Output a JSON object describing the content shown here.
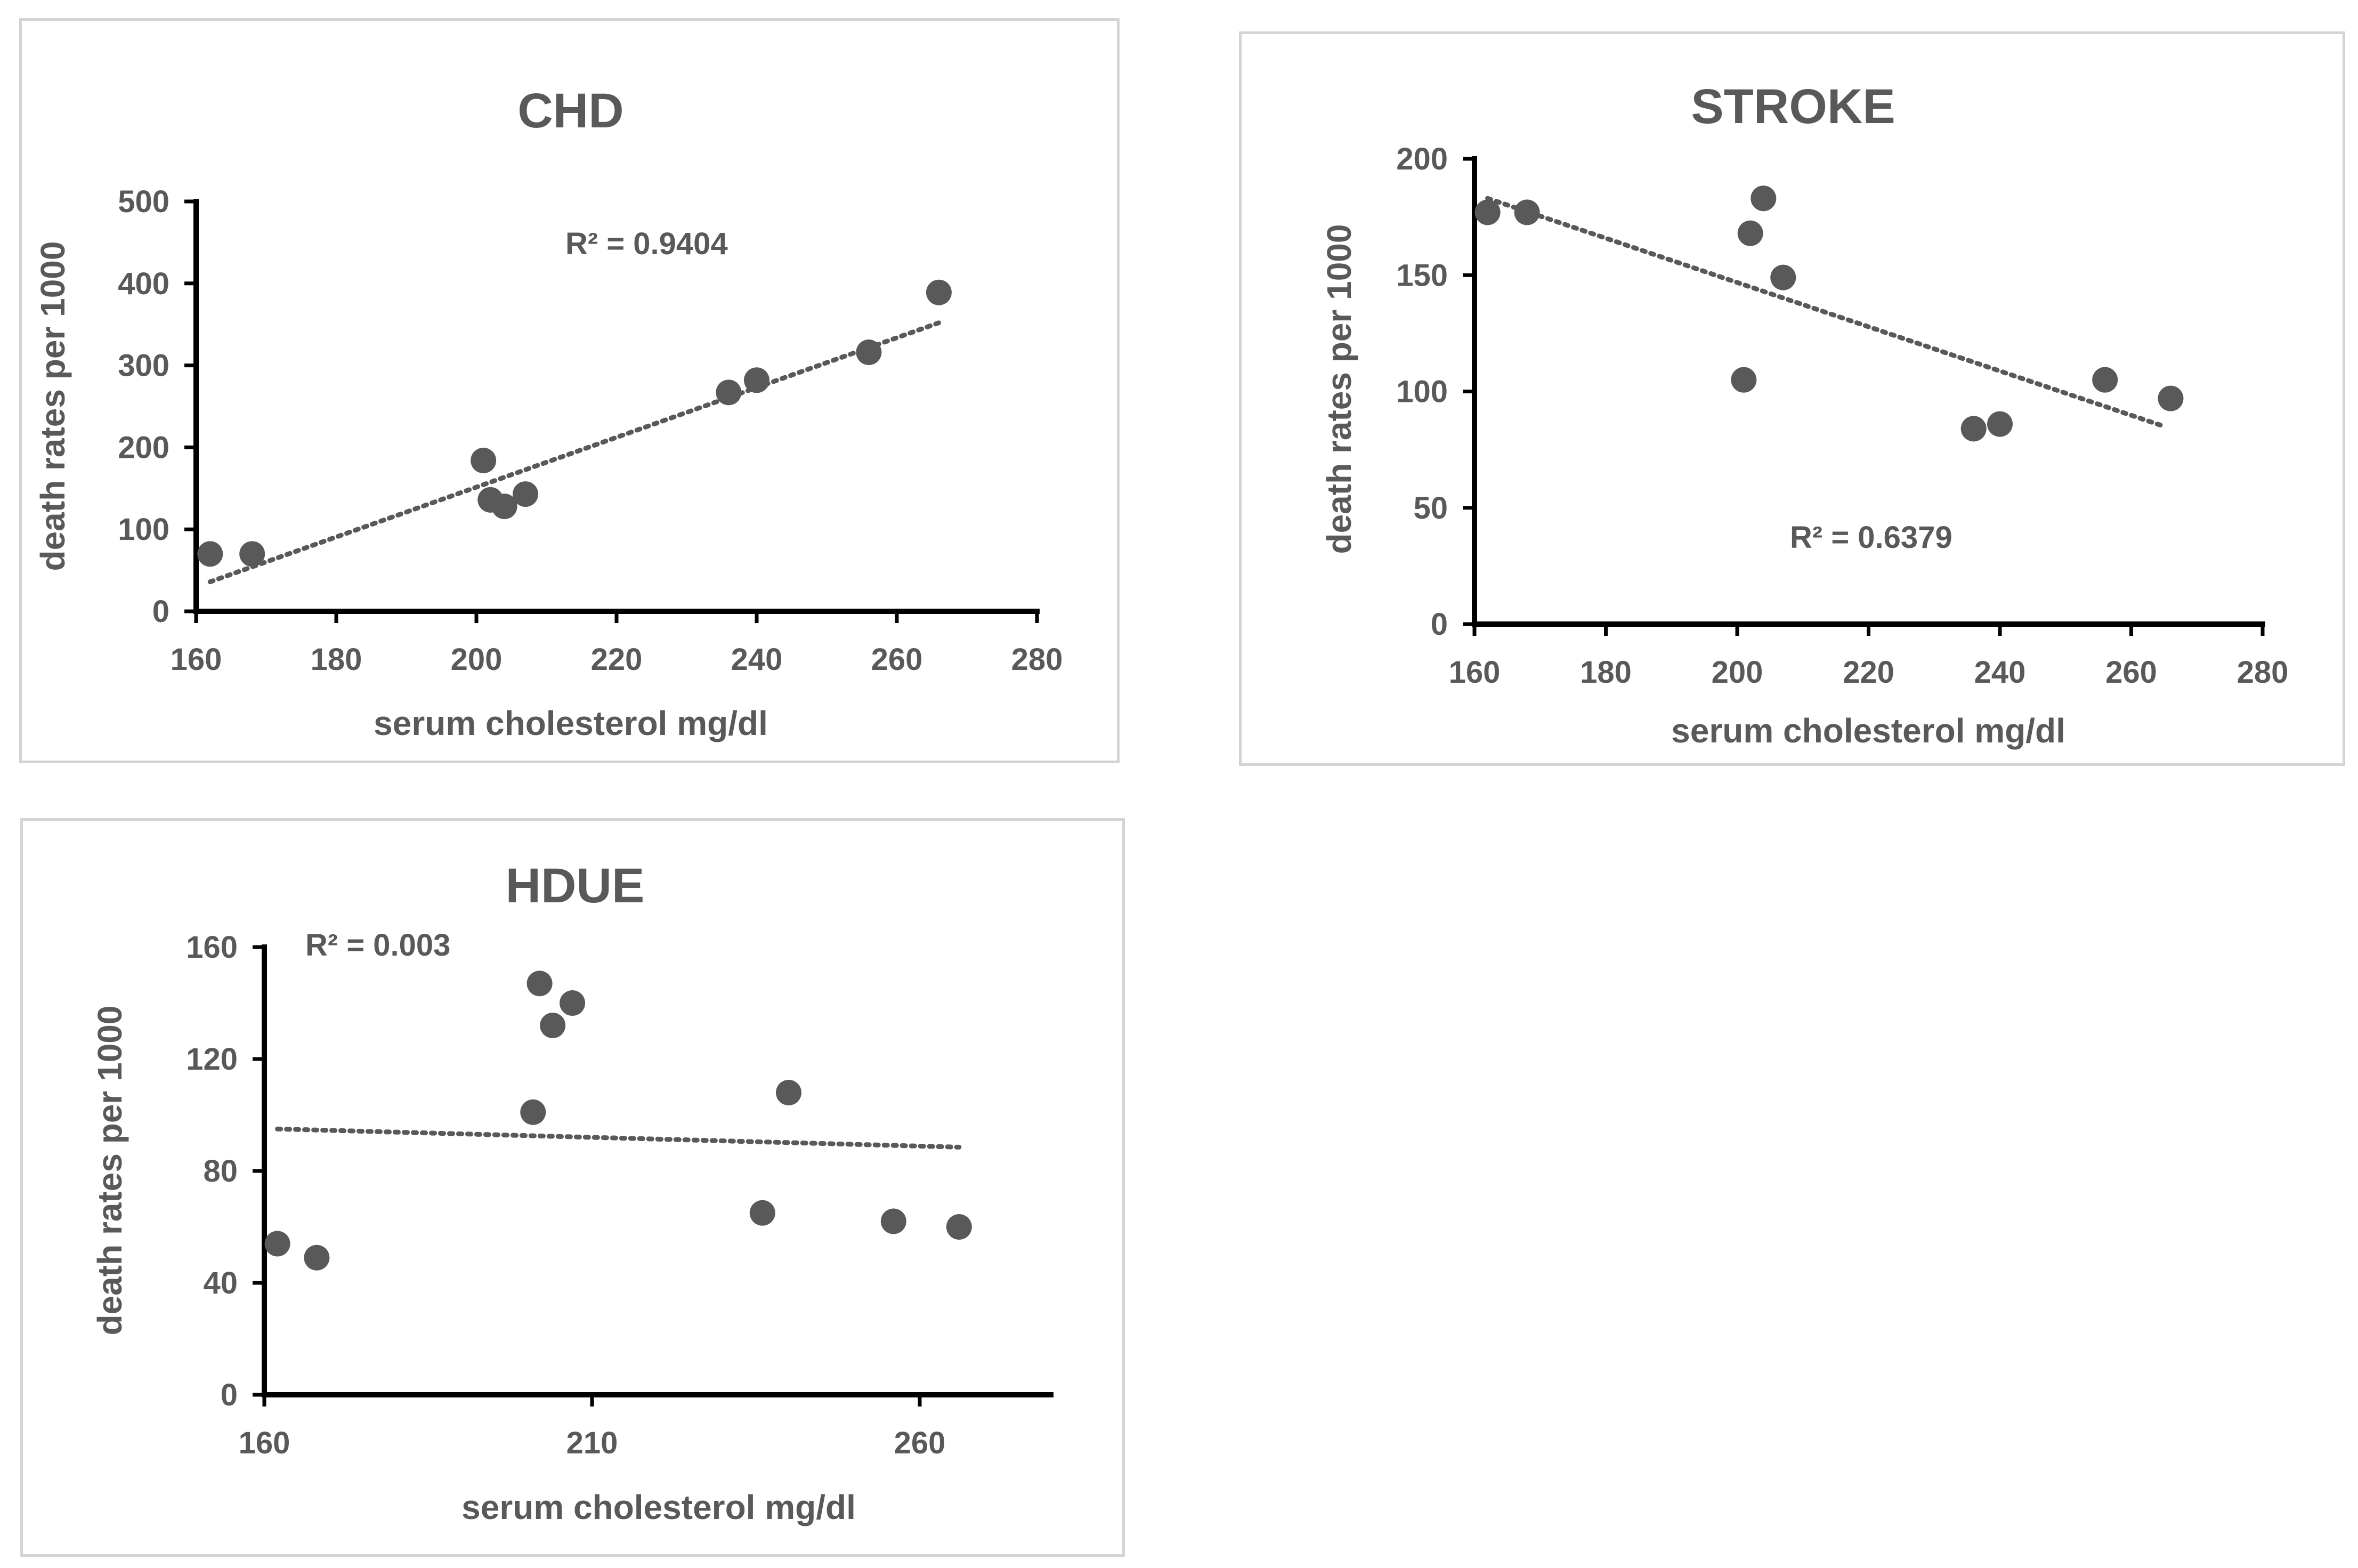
{
  "chart_data": [
    {
      "id": "chd",
      "type": "scatter",
      "title": "CHD",
      "xlabel": "serum cholesterol mg/dl",
      "ylabel": "death rates per 1000",
      "xlim": [
        160,
        280
      ],
      "ylim": [
        0,
        500
      ],
      "xticks": [
        160,
        180,
        200,
        220,
        240,
        260,
        280
      ],
      "yticks": [
        0,
        100,
        200,
        300,
        400,
        500
      ],
      "grid": false,
      "points": [
        {
          "x": 162,
          "y": 70
        },
        {
          "x": 168,
          "y": 70
        },
        {
          "x": 201,
          "y": 184
        },
        {
          "x": 202,
          "y": 136
        },
        {
          "x": 204,
          "y": 128
        },
        {
          "x": 207,
          "y": 143
        },
        {
          "x": 236,
          "y": 267
        },
        {
          "x": 240,
          "y": 282
        },
        {
          "x": 256,
          "y": 316
        },
        {
          "x": 266,
          "y": 389
        }
      ],
      "trendline": {
        "type": "linear",
        "x": [
          162,
          266
        ],
        "y": [
          36,
          352
        ]
      },
      "annotation": "R² = 0.9404",
      "colors": {
        "marker": "#595959",
        "axis": "#000000",
        "trendline": "#595959",
        "text": "#595959"
      }
    },
    {
      "id": "stroke",
      "type": "scatter",
      "title": "STROKE",
      "xlabel": "serum cholesterol mg/dl",
      "ylabel": "death rates per 1000",
      "xlim": [
        160,
        280
      ],
      "ylim": [
        0,
        200
      ],
      "xticks": [
        160,
        180,
        200,
        220,
        240,
        260,
        280
      ],
      "yticks": [
        0,
        50,
        100,
        150,
        200
      ],
      "grid": false,
      "points": [
        {
          "x": 162,
          "y": 177
        },
        {
          "x": 168,
          "y": 177
        },
        {
          "x": 201,
          "y": 105
        },
        {
          "x": 202,
          "y": 168
        },
        {
          "x": 204,
          "y": 183
        },
        {
          "x": 207,
          "y": 149
        },
        {
          "x": 236,
          "y": 84
        },
        {
          "x": 240,
          "y": 86
        },
        {
          "x": 256,
          "y": 105
        },
        {
          "x": 266,
          "y": 97
        }
      ],
      "trendline": {
        "type": "linear",
        "x": [
          162,
          265
        ],
        "y": [
          183,
          85
        ]
      },
      "annotation": "R² = 0.6379",
      "colors": {
        "marker": "#595959",
        "axis": "#000000",
        "trendline": "#595959",
        "text": "#595959"
      }
    },
    {
      "id": "hdue",
      "type": "scatter",
      "title": "HDUE",
      "xlabel": "serum cholesterol mg/dl",
      "ylabel": "death rates per 1000",
      "xlim": [
        160,
        280
      ],
      "ylim": [
        0,
        160
      ],
      "xticks": [
        160,
        210,
        260
      ],
      "yticks": [
        0,
        40,
        80,
        120,
        160
      ],
      "grid": false,
      "points": [
        {
          "x": 162,
          "y": 54
        },
        {
          "x": 168,
          "y": 49
        },
        {
          "x": 201,
          "y": 101
        },
        {
          "x": 202,
          "y": 147
        },
        {
          "x": 204,
          "y": 132
        },
        {
          "x": 207,
          "y": 140
        },
        {
          "x": 236,
          "y": 65
        },
        {
          "x": 240,
          "y": 108
        },
        {
          "x": 256,
          "y": 62
        },
        {
          "x": 266,
          "y": 60
        }
      ],
      "trendline": {
        "type": "linear",
        "x": [
          162,
          266
        ],
        "y": [
          95,
          88.5
        ]
      },
      "annotation": "R² = 0.003",
      "colors": {
        "marker": "#595959",
        "axis": "#000000",
        "trendline": "#595959",
        "text": "#595959"
      }
    }
  ]
}
